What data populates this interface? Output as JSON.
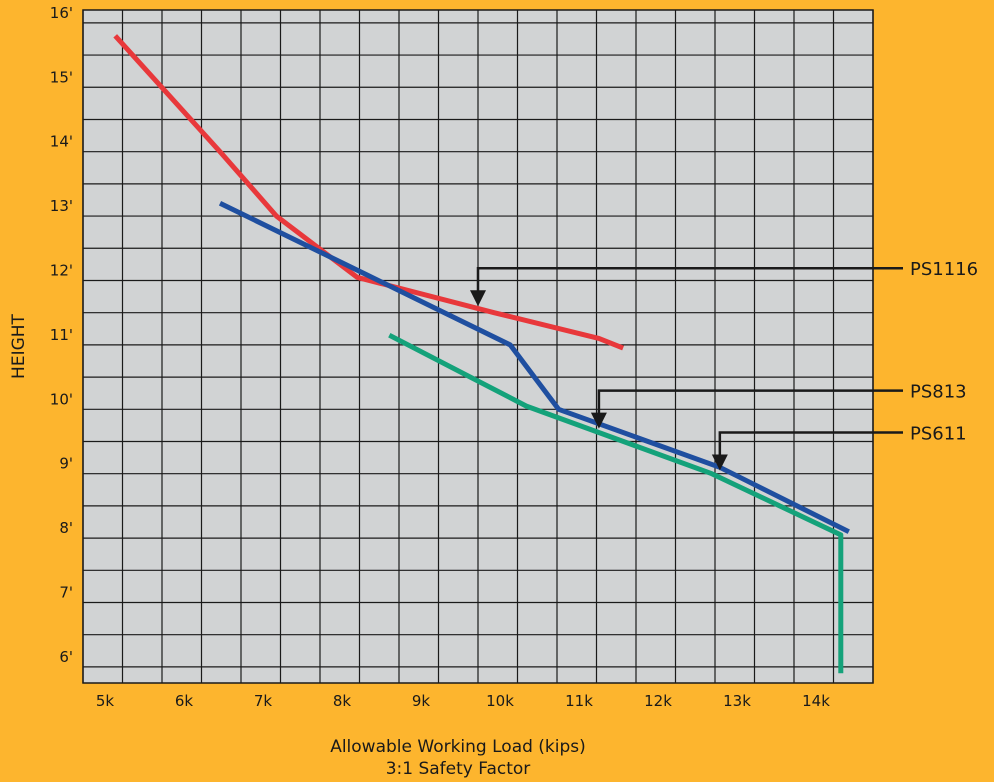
{
  "chart_data": {
    "type": "line",
    "xlabel": "Allowable Working Load (kips)",
    "xlabel_sub": "3:1 Safety Factor",
    "ylabel": "HEIGHT",
    "x_ticks": [
      "5k",
      "6k",
      "7k",
      "8k",
      "9k",
      "10k",
      "11k",
      "12k",
      "13k",
      "14k"
    ],
    "y_ticks": [
      "6'",
      "7'",
      "8'",
      "9'",
      "10'",
      "11'",
      "12'",
      "13'",
      "14'",
      "15'",
      "16'"
    ],
    "xlim": [
      4.6,
      14.4
    ],
    "ylim": [
      5.75,
      16.2
    ],
    "grid": true,
    "colors": {
      "background": "#FDB52E",
      "plot_area": "#D1D3D4",
      "grid": "#1a1a1a",
      "PS1116": "#E8383B",
      "PS813": "#1F4FA0",
      "PS611": "#14A27A",
      "callout": "#1a1a1a"
    },
    "series": [
      {
        "name": "PS1116",
        "points": [
          [
            5.0,
            15.8
          ],
          [
            6.3,
            14.0
          ],
          [
            7.0,
            13.0
          ],
          [
            8.0,
            12.05
          ],
          [
            9.7,
            11.5
          ],
          [
            11.0,
            11.1
          ],
          [
            11.3,
            10.95
          ]
        ]
      },
      {
        "name": "PS813",
        "points": [
          [
            6.3,
            13.2
          ],
          [
            8.1,
            12.1
          ],
          [
            9.9,
            11.0
          ],
          [
            10.5,
            10.0
          ],
          [
            12.5,
            9.1
          ],
          [
            14.1,
            8.1
          ]
        ]
      },
      {
        "name": "PS611",
        "points": [
          [
            8.4,
            11.15
          ],
          [
            10.1,
            10.05
          ],
          [
            12.4,
            9.0
          ],
          [
            14.0,
            8.05
          ],
          [
            14.0,
            5.9
          ]
        ]
      }
    ],
    "callouts": [
      {
        "label": "PS1116",
        "series": "PS1116",
        "x": 9.5,
        "y": 11.6
      },
      {
        "label": "PS813",
        "series": "PS813",
        "x": 11.0,
        "y": 9.7
      },
      {
        "label": "PS611",
        "series": "PS611",
        "x": 12.5,
        "y": 9.05
      }
    ]
  }
}
